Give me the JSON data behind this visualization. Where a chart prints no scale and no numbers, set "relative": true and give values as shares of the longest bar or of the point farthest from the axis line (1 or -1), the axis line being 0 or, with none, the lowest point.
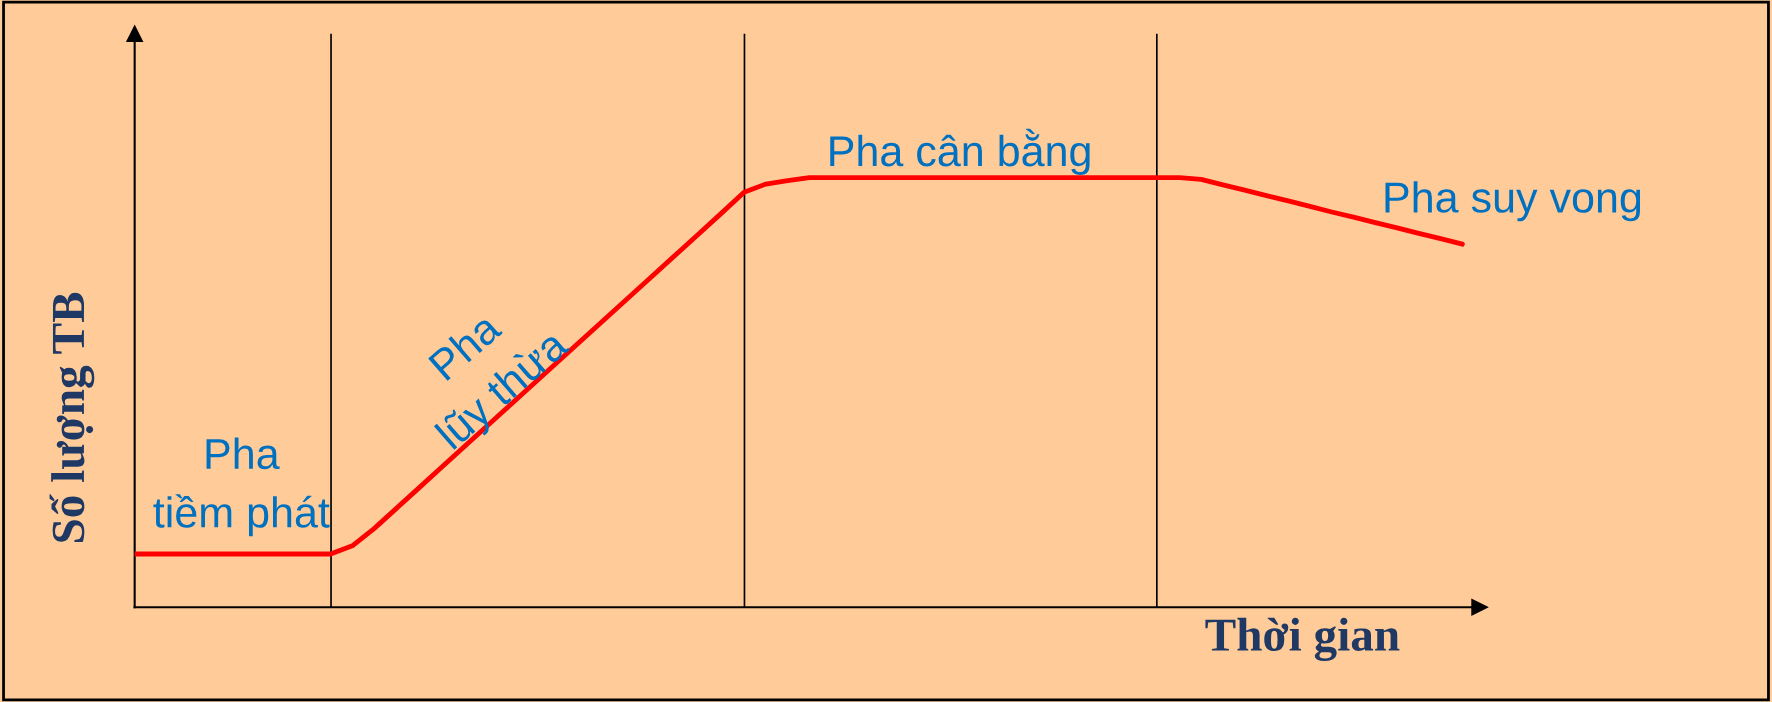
{
  "chart_data": {
    "type": "line",
    "relative": true,
    "xlabel": "Thời gian",
    "ylabel": "Số lượng TB",
    "categories": [
      null,
      null,
      null,
      null,
      null,
      null,
      null,
      null,
      null,
      null,
      null,
      null,
      null,
      null,
      null,
      null,
      null,
      null,
      null,
      null,
      null,
      null,
      null,
      null,
      null,
      null,
      null,
      null,
      null,
      null,
      null,
      null,
      null,
      null,
      null,
      null,
      null,
      null,
      null,
      null,
      null,
      null,
      null,
      null,
      null,
      null,
      null,
      null,
      null,
      null,
      null,
      null,
      null,
      null,
      null,
      null,
      null,
      null,
      null,
      null,
      null,
      null
    ],
    "series": [
      {
        "color": "#ff0000",
        "values": [
          0.124,
          0.124,
          0.124,
          0.124,
          0.124,
          0.124,
          0.124,
          0.124,
          0.124,
          0.124,
          0.143,
          0.183,
          0.229,
          0.275,
          0.321,
          0.367,
          0.413,
          0.459,
          0.505,
          0.551,
          0.597,
          0.643,
          0.689,
          0.735,
          0.781,
          0.827,
          0.873,
          0.919,
          0.966,
          0.985,
          0.993,
          1,
          1,
          1,
          1,
          1,
          1,
          1,
          1,
          1,
          1,
          1,
          1,
          1,
          1,
          1,
          1,
          1,
          1,
          0.996,
          0.983,
          0.971,
          0.958,
          0.946,
          0.933,
          0.92,
          0.908,
          0.895,
          0.883,
          0.87,
          0.858,
          0.845
        ]
      }
    ],
    "annotations": [
      "Pha\ntiềm phát",
      "Pha\nlũy thừa",
      "Pha cân bằng",
      "Pha suy vong"
    ],
    "grid": "x",
    "legend": false,
    "marker": "none",
    "line_style": "solid"
  }
}
